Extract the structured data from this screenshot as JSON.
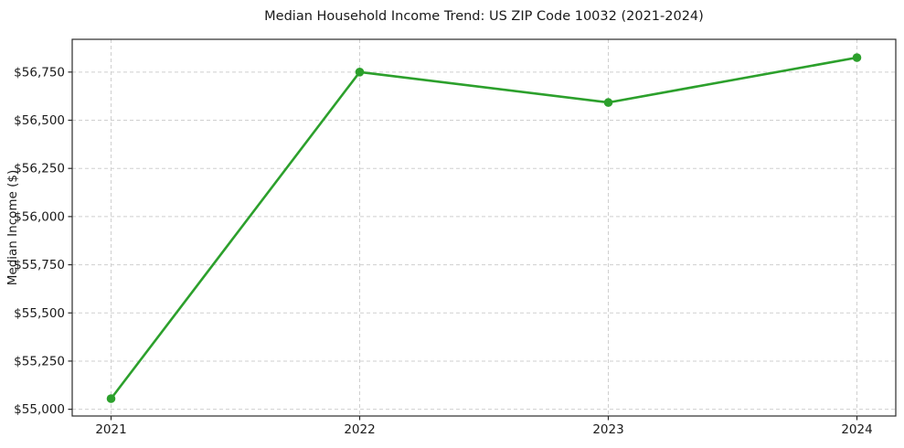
{
  "figure": {
    "title": "Median Household Income Trend: US ZIP Code 10032 (2021-2024)"
  },
  "chart_data": {
    "type": "line",
    "title": "Median Household Income Trend: US ZIP Code 10032 (2021-2024)",
    "x": [
      "2021",
      "2022",
      "2023",
      "2024"
    ],
    "series": [
      {
        "name": "Median Household Income",
        "values": [
          55055,
          56750,
          56592,
          56825
        ]
      }
    ],
    "xlabel": "",
    "ylabel": "Median Income ($)",
    "ylim": [
      54965,
      56920
    ],
    "yticks": [
      55000,
      55250,
      55500,
      55750,
      56000,
      56250,
      56500,
      56750
    ],
    "ytick_prefix": "$",
    "grid": true,
    "grid_style": "dashed",
    "legend_position": "none",
    "marker": "circle",
    "marker_radius": 4.8,
    "line_width": 2.6,
    "colors": {
      "line": "#2ca02c",
      "marker": "#2ca02c",
      "grid": "#cfcfcf",
      "spine": "#2b2b2b",
      "tick": "#2b2b2b",
      "text": "#1a1a1a",
      "background": "#ffffff"
    }
  }
}
